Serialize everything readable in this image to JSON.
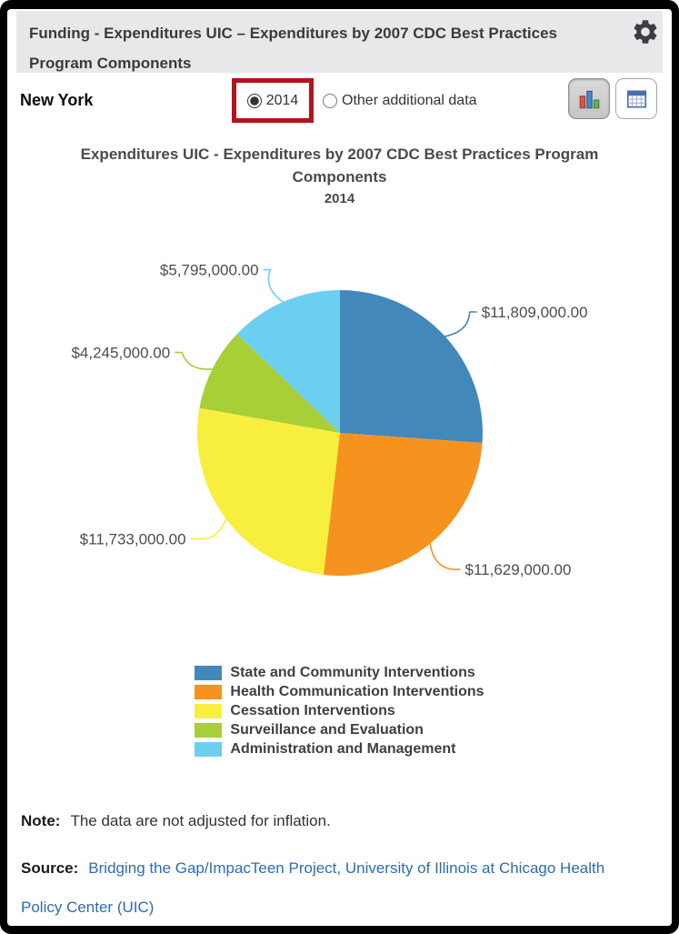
{
  "header": {
    "title": "Funding - Expenditures UIC – Expenditures by 2007 CDC Best Practices Program Components"
  },
  "controls": {
    "location": "New York",
    "radios": [
      {
        "label": "2014",
        "selected": true,
        "highlighted": true
      },
      {
        "label": "Other additional data",
        "selected": false,
        "highlighted": false
      }
    ],
    "highlight_color": "#B5121B",
    "view_buttons": [
      {
        "name": "chart-view",
        "active": true
      },
      {
        "name": "table-view",
        "active": false
      }
    ]
  },
  "chart_data": {
    "type": "pie",
    "title": "Expenditures UIC - Expenditures by 2007 CDC Best Practices Program Components",
    "subtitle": "2014",
    "legend_position": "bottom",
    "start_angle_deg": 0,
    "direction": "clockwise",
    "total": 45211000,
    "series": [
      {
        "name": "State and Community Interventions",
        "value": 11809000,
        "label": "$11,809,000.00",
        "color": "#4288BA"
      },
      {
        "name": "Health Communication Interventions",
        "value": 11629000,
        "label": "$11,629,000.00",
        "color": "#F6921E"
      },
      {
        "name": "Cessation Interventions",
        "value": 11733000,
        "label": "$11,733,000.00",
        "color": "#F8EE3D"
      },
      {
        "name": "Surveillance and Evaluation",
        "value": 4245000,
        "label": "$4,245,000.00",
        "color": "#A8CE38"
      },
      {
        "name": "Administration and Management",
        "value": 5795000,
        "label": "$5,795,000.00",
        "color": "#6DCFF0"
      }
    ]
  },
  "note": {
    "label": "Note:",
    "text": "The data are not adjusted for inflation."
  },
  "source": {
    "label": "Source:",
    "link_text": "Bridging the Gap/ImpacTeen Project, University of Illinois at Chicago Health Policy Center (UIC)"
  }
}
